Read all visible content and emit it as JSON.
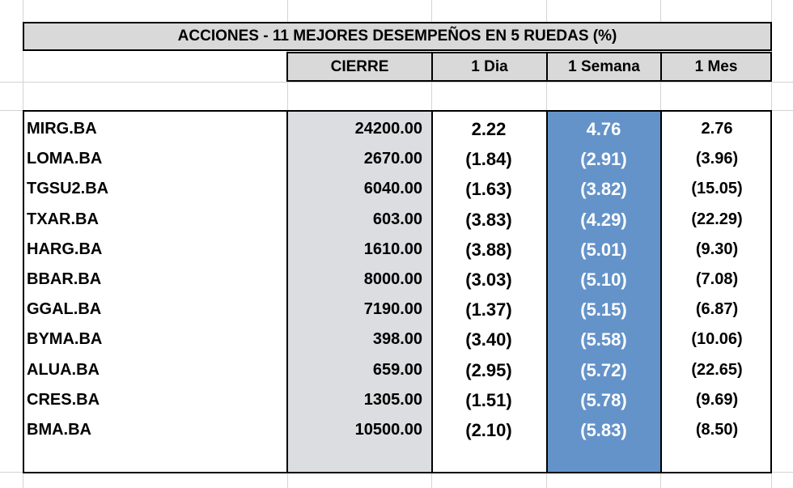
{
  "title": "ACCIONES   - 11  MEJORES DESEMPEÑOS EN 5 RUEDAS (%)",
  "headers": {
    "cierre": "CIERRE",
    "dia": "1 Dia",
    "semana": "1 Semana",
    "mes": "1 Mes"
  },
  "colors": {
    "header_bg": "#d9d9d9",
    "cierre_bg": "#dcdde0",
    "semana_bg": "#6493c9"
  },
  "rows": [
    {
      "ticker": "MIRG.BA",
      "cierre": "24200.00",
      "dia": "2.22",
      "semana": "4.76",
      "mes": "2.76"
    },
    {
      "ticker": "LOMA.BA",
      "cierre": "2670.00",
      "dia": "(1.84)",
      "semana": "(2.91)",
      "mes": "(3.96)"
    },
    {
      "ticker": "TGSU2.BA",
      "cierre": "6040.00",
      "dia": "(1.63)",
      "semana": "(3.82)",
      "mes": "(15.05)"
    },
    {
      "ticker": "TXAR.BA",
      "cierre": "603.00",
      "dia": "(3.83)",
      "semana": "(4.29)",
      "mes": "(22.29)"
    },
    {
      "ticker": "HARG.BA",
      "cierre": "1610.00",
      "dia": "(3.88)",
      "semana": "(5.01)",
      "mes": "(9.30)"
    },
    {
      "ticker": "BBAR.BA",
      "cierre": "8000.00",
      "dia": "(3.03)",
      "semana": "(5.10)",
      "mes": "(7.08)"
    },
    {
      "ticker": "GGAL.BA",
      "cierre": "7190.00",
      "dia": "(1.37)",
      "semana": "(5.15)",
      "mes": "(6.87)"
    },
    {
      "ticker": "BYMA.BA",
      "cierre": "398.00",
      "dia": "(3.40)",
      "semana": "(5.58)",
      "mes": "(10.06)"
    },
    {
      "ticker": "ALUA.BA",
      "cierre": "659.00",
      "dia": "(2.95)",
      "semana": "(5.72)",
      "mes": "(22.65)"
    },
    {
      "ticker": "CRES.BA",
      "cierre": "1305.00",
      "dia": "(1.51)",
      "semana": "(5.78)",
      "mes": "(9.69)"
    },
    {
      "ticker": "BMA.BA",
      "cierre": "10500.00",
      "dia": "(2.10)",
      "semana": "(5.83)",
      "mes": "(8.50)"
    }
  ]
}
